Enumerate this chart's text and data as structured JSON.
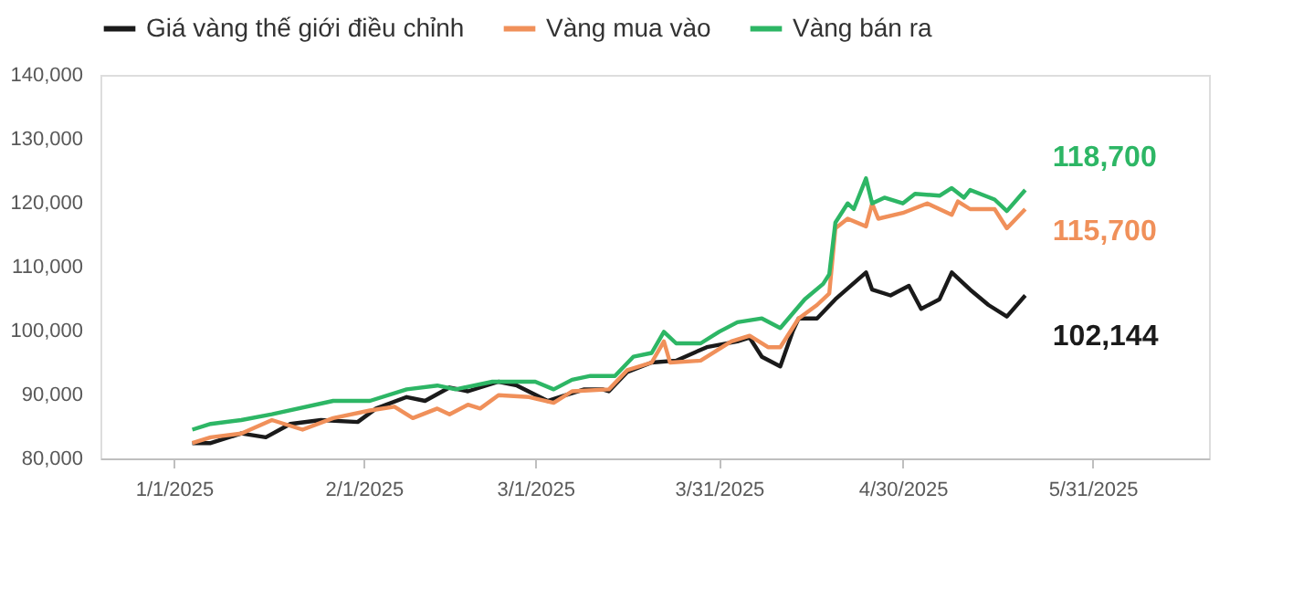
{
  "chart_data": {
    "type": "line",
    "xlim": [
      "2024-12-20",
      "2025-06-19"
    ],
    "xticks": [
      {
        "value": "2025-01-01",
        "label": "1/1/2025"
      },
      {
        "value": "2025-02-01",
        "label": "2/1/2025"
      },
      {
        "value": "2025-03-01",
        "label": "3/1/2025"
      },
      {
        "value": "2025-03-31",
        "label": "3/31/2025"
      },
      {
        "value": "2025-04-30",
        "label": "4/30/2025"
      },
      {
        "value": "2025-05-31",
        "label": "5/31/2025"
      }
    ],
    "ylim": [
      80000,
      140000
    ],
    "yticks": [
      {
        "value": 80000,
        "label": "80,000"
      },
      {
        "value": 90000,
        "label": "90,000"
      },
      {
        "value": 100000,
        "label": "100,000"
      },
      {
        "value": 110000,
        "label": "110,000"
      },
      {
        "value": 120000,
        "label": "120,000"
      },
      {
        "value": 130000,
        "label": "130,000"
      },
      {
        "value": 140000,
        "label": "140,000"
      }
    ],
    "grid": false,
    "legend": "top",
    "line_style": "solid",
    "marker": "none",
    "series": [
      {
        "name": "Giá vàng thế giới điều chỉnh",
        "color": "#1a1a1a",
        "x": [
          "2025-01-04",
          "2025-01-07",
          "2025-01-12",
          "2025-01-16",
          "2025-01-20",
          "2025-01-25",
          "2025-01-31",
          "2025-02-03",
          "2025-02-08",
          "2025-02-11",
          "2025-02-15",
          "2025-02-18",
          "2025-02-23",
          "2025-02-26",
          "2025-03-03",
          "2025-03-06",
          "2025-03-09",
          "2025-03-12",
          "2025-03-13",
          "2025-03-16",
          "2025-03-20",
          "2025-03-24",
          "2025-03-29",
          "2025-04-03",
          "2025-04-05",
          "2025-04-07",
          "2025-04-10",
          "2025-04-12",
          "2025-04-13",
          "2025-04-16",
          "2025-04-19",
          "2025-04-24",
          "2025-04-25",
          "2025-04-28",
          "2025-05-01",
          "2025-05-03",
          "2025-05-06",
          "2025-05-08",
          "2025-05-11",
          "2025-05-14",
          "2025-05-17",
          "2025-05-20"
        ],
        "values": [
          82400,
          82400,
          83900,
          83300,
          85400,
          86000,
          85700,
          87800,
          89600,
          89000,
          91100,
          90500,
          92000,
          91400,
          89000,
          89900,
          90800,
          90800,
          90500,
          93500,
          95000,
          95300,
          97400,
          98300,
          98900,
          95900,
          94400,
          99800,
          101900,
          101900,
          104900,
          109100,
          106400,
          105500,
          107000,
          103400,
          104900,
          109100,
          106400,
          104000,
          102200,
          105500
        ]
      },
      {
        "name": "Vàng mua vào",
        "color": "#f0905a",
        "x": [
          "2025-01-04",
          "2025-01-07",
          "2025-01-12",
          "2025-01-17",
          "2025-01-22",
          "2025-01-27",
          "2025-02-02",
          "2025-02-06",
          "2025-02-09",
          "2025-02-13",
          "2025-02-15",
          "2025-02-18",
          "2025-02-20",
          "2025-02-23",
          "2025-02-28",
          "2025-03-04",
          "2025-03-07",
          "2025-03-13",
          "2025-03-16",
          "2025-03-20",
          "2025-03-22",
          "2025-03-23",
          "2025-03-28",
          "2025-04-02",
          "2025-04-05",
          "2025-04-08",
          "2025-04-10",
          "2025-04-13",
          "2025-04-16",
          "2025-04-18",
          "2025-04-19",
          "2025-04-21",
          "2025-04-24",
          "2025-04-25",
          "2025-04-26",
          "2025-04-30",
          "2025-05-04",
          "2025-05-08",
          "2025-05-09",
          "2025-05-11",
          "2025-05-15",
          "2025-05-17",
          "2025-05-20"
        ],
        "values": [
          82400,
          83300,
          83900,
          86000,
          84500,
          86300,
          87500,
          88100,
          86300,
          87800,
          86900,
          88400,
          87800,
          89900,
          89600,
          88700,
          90500,
          90800,
          93800,
          95000,
          98300,
          95000,
          95300,
          98300,
          99200,
          97400,
          97400,
          101900,
          104000,
          105800,
          116000,
          117500,
          116300,
          119900,
          117500,
          118400,
          119900,
          118100,
          120200,
          119000,
          119000,
          116000,
          119000
        ]
      },
      {
        "name": "Vàng bán ra",
        "color": "#2db665",
        "x": [
          "2025-01-04",
          "2025-01-07",
          "2025-01-12",
          "2025-01-17",
          "2025-01-27",
          "2025-02-02",
          "2025-02-08",
          "2025-02-13",
          "2025-02-16",
          "2025-02-22",
          "2025-03-01",
          "2025-03-04",
          "2025-03-07",
          "2025-03-10",
          "2025-03-13",
          "2025-03-14",
          "2025-03-17",
          "2025-03-20",
          "2025-03-22",
          "2025-03-24",
          "2025-03-28",
          "2025-03-31",
          "2025-04-03",
          "2025-04-07",
          "2025-04-10",
          "2025-04-14",
          "2025-04-17",
          "2025-04-18",
          "2025-04-19",
          "2025-04-21",
          "2025-04-22",
          "2025-04-24",
          "2025-04-25",
          "2025-04-27",
          "2025-04-30",
          "2025-05-02",
          "2025-05-06",
          "2025-05-08",
          "2025-05-10",
          "2025-05-11",
          "2025-05-15",
          "2025-05-17",
          "2025-05-20"
        ],
        "values": [
          84500,
          85400,
          86000,
          86900,
          89000,
          89000,
          90800,
          91400,
          90800,
          92000,
          92000,
          90800,
          92300,
          92900,
          92900,
          92900,
          95900,
          96500,
          99800,
          98000,
          98000,
          99800,
          101300,
          101900,
          100400,
          104900,
          107300,
          108800,
          116900,
          119900,
          119000,
          123800,
          119900,
          120800,
          119900,
          121400,
          121100,
          122300,
          120800,
          122000,
          120500,
          118700,
          122000
        ]
      }
    ],
    "annotations": [
      "118,700",
      "115,700",
      "102,144"
    ]
  }
}
